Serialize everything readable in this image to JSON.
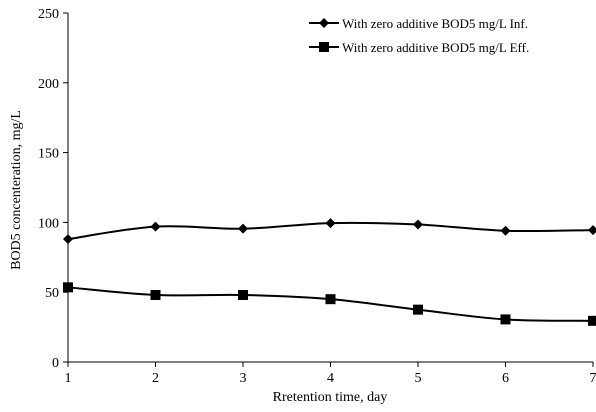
{
  "chart_data": {
    "type": "line",
    "x": [
      1,
      2,
      3,
      4,
      5,
      6,
      7
    ],
    "series": [
      {
        "name": "With zero additive BOD5 mg/L Inf.",
        "marker": "diamond",
        "values": [
          88,
          97,
          95.5,
          99.5,
          98.5,
          94,
          94.5
        ]
      },
      {
        "name": "With zero additive BOD5 mg/L Eff.",
        "marker": "square",
        "values": [
          53.5,
          48,
          48,
          45,
          37.5,
          30.5,
          29.5
        ]
      }
    ],
    "xlabel": "Rretention time, day",
    "ylabel": "BOD5 concenteration,  mg/L",
    "xlim": [
      1,
      7
    ],
    "ylim": [
      0,
      250
    ],
    "xticks": [
      "1",
      "2",
      "3",
      "4",
      "5",
      "6",
      "7"
    ],
    "yticks": [
      "0",
      "50",
      "100",
      "150",
      "200",
      "250"
    ],
    "grid": false,
    "legend_position": "top-right",
    "line_color": "#000000",
    "smooth": true
  }
}
